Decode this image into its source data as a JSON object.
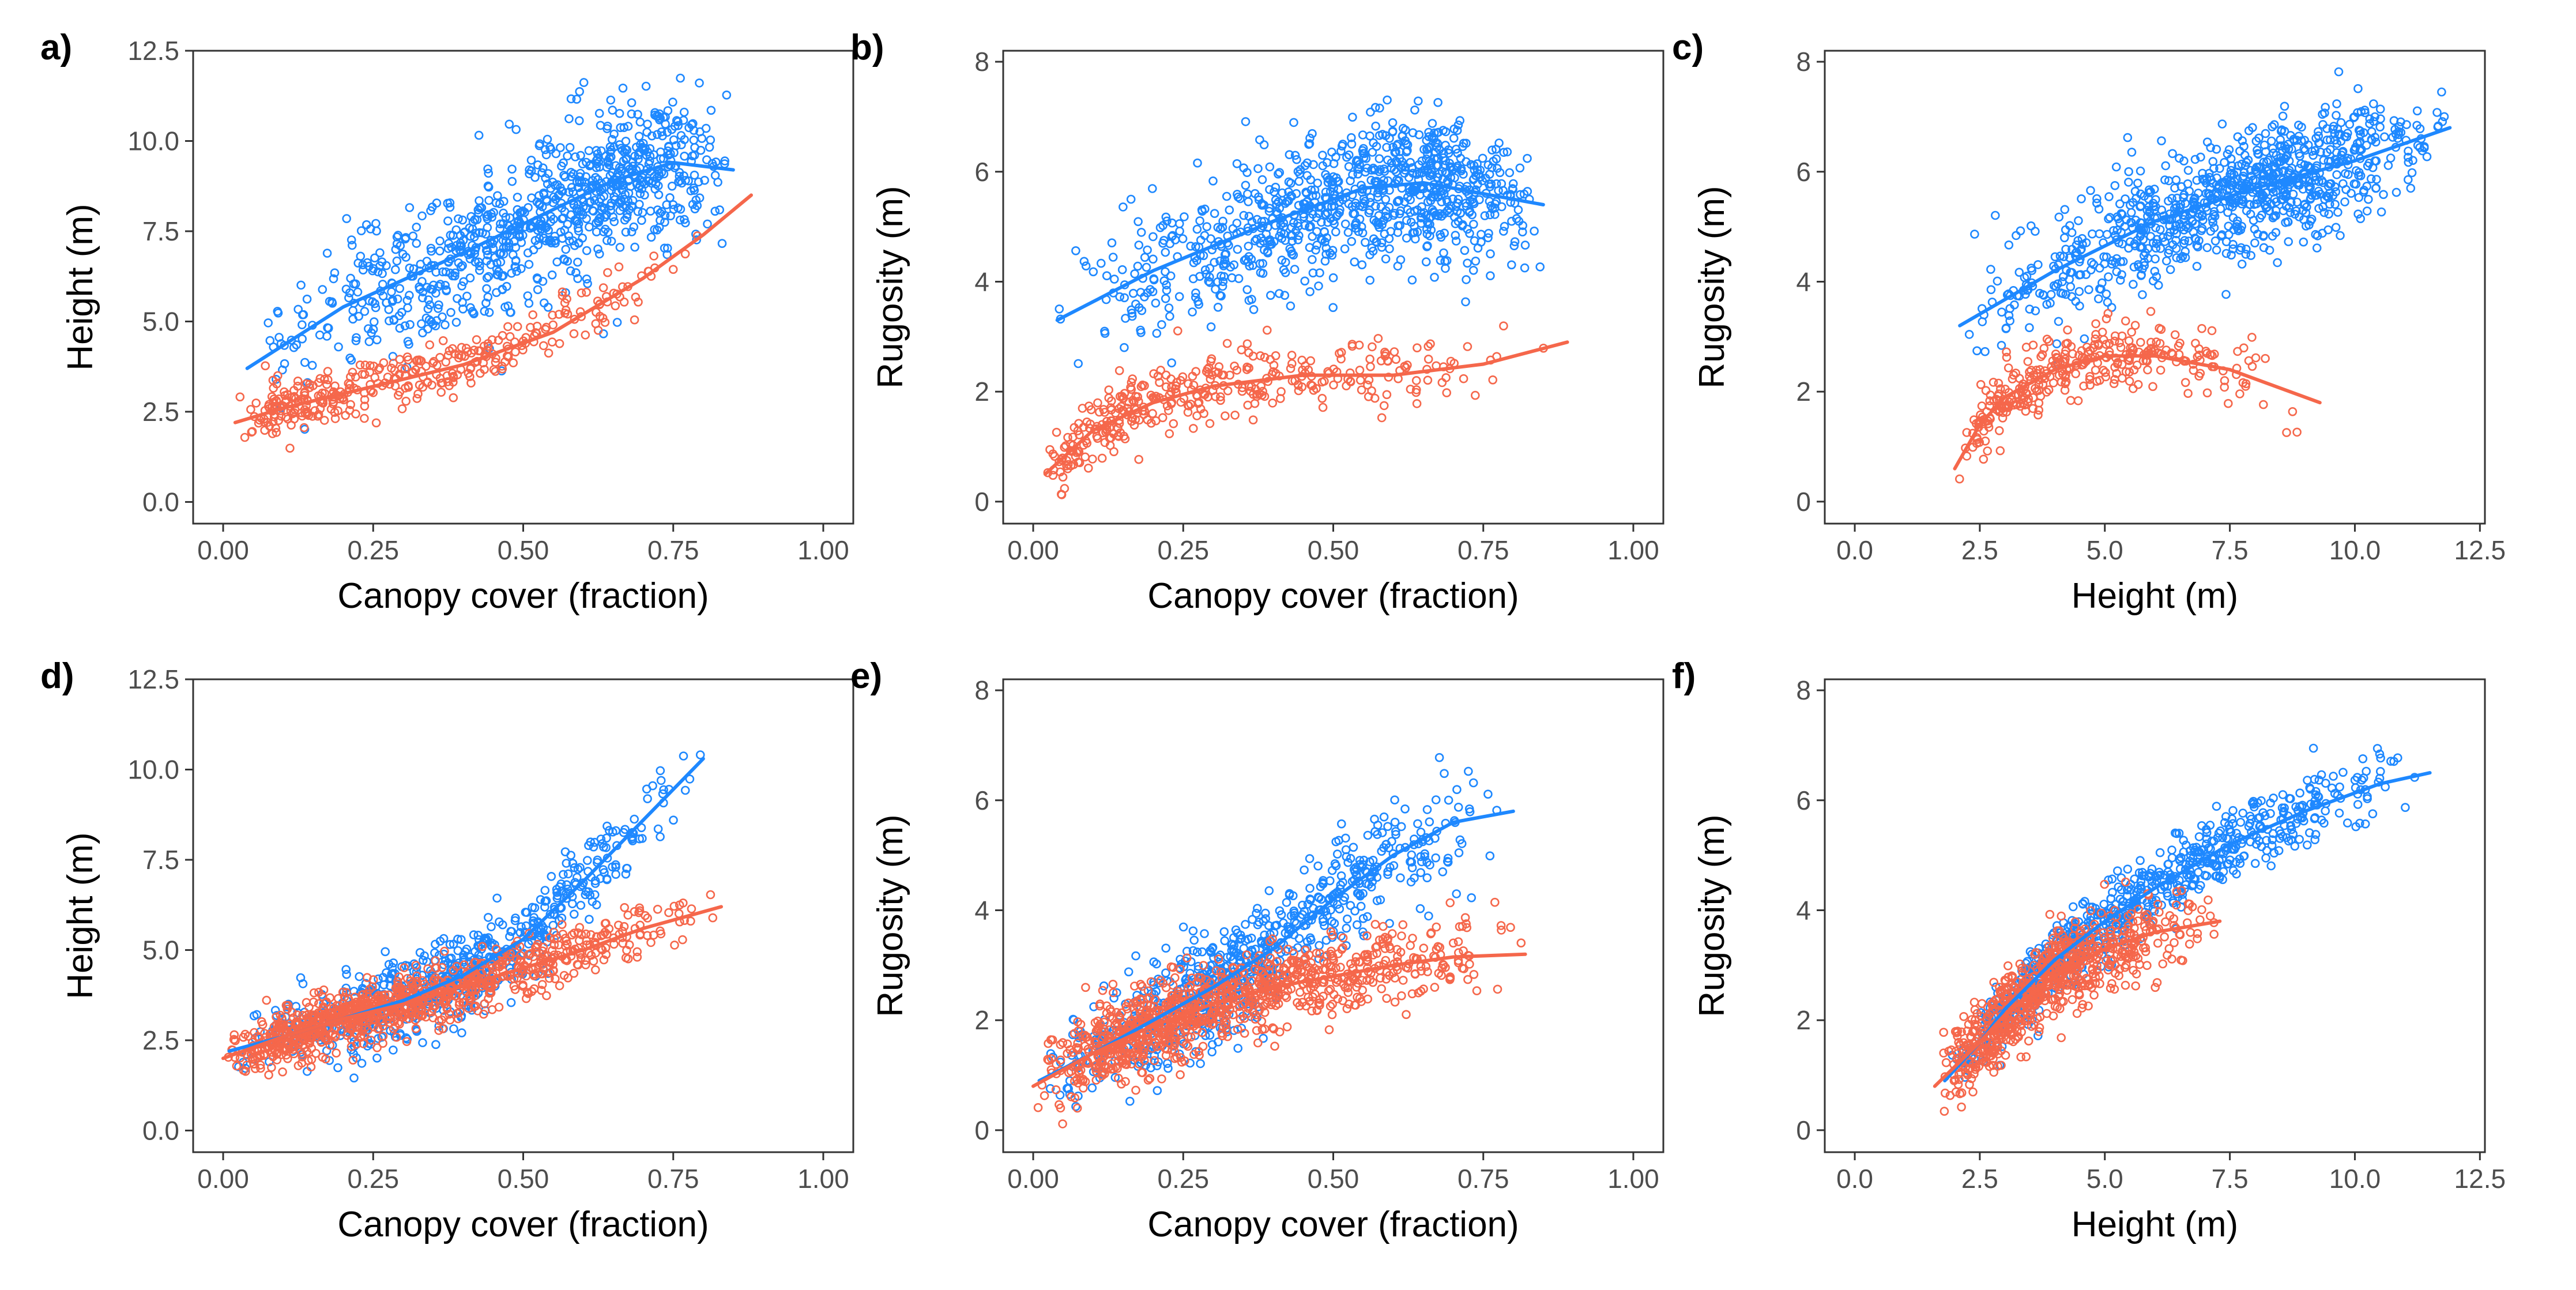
{
  "colors": {
    "series_a": "#1E88FF",
    "series_b": "#F5674B",
    "frame": "#333333",
    "tick_text": "#4d4d4d"
  },
  "chart_data": [
    {
      "type": "scatter",
      "panel_label": "a)",
      "xlabel": "Canopy cover (fraction)",
      "ylabel": "Height (m)",
      "xlim": [
        -0.05,
        1.05
      ],
      "ylim": [
        -0.6,
        12.5
      ],
      "xticks": [
        0,
        0.25,
        0.5,
        0.75,
        1
      ],
      "xtick_labels": [
        "0.00",
        "0.25",
        "0.50",
        "0.75",
        "1.00"
      ],
      "yticks": [
        0,
        2.5,
        5,
        7.5,
        10,
        12.5
      ],
      "ytick_labels": [
        "0.0",
        "2.5",
        "5.0",
        "7.5",
        "10.0",
        "12.5"
      ],
      "series": [
        {
          "name": "blue",
          "color": "#1E88FF",
          "count": 900,
          "spread": 1.4,
          "x_range": [
            0.03,
            0.85
          ],
          "x_mode": 0.7,
          "trend": [
            [
              0.04,
              3.7
            ],
            [
              0.2,
              5.4
            ],
            [
              0.4,
              6.9
            ],
            [
              0.55,
              8.1
            ],
            [
              0.65,
              8.9
            ],
            [
              0.75,
              9.4
            ],
            [
              0.85,
              9.2
            ]
          ]
        },
        {
          "name": "red",
          "color": "#F5674B",
          "count": 350,
          "spread": 0.55,
          "x_range": [
            0.02,
            0.88
          ],
          "x_mode": 0.08,
          "trend": [
            [
              0.02,
              2.2
            ],
            [
              0.1,
              2.6
            ],
            [
              0.2,
              3.0
            ],
            [
              0.4,
              3.8
            ],
            [
              0.55,
              4.7
            ],
            [
              0.7,
              6.2
            ],
            [
              0.8,
              7.4
            ],
            [
              0.88,
              8.5
            ]
          ]
        }
      ]
    },
    {
      "type": "scatter",
      "panel_label": "b)",
      "xlabel": "Canopy cover (fraction)",
      "ylabel": "Rugosity (m)",
      "xlim": [
        -0.05,
        1.05
      ],
      "ylim": [
        -0.4,
        8.2
      ],
      "xticks": [
        0,
        0.25,
        0.5,
        0.75,
        1
      ],
      "xtick_labels": [
        "0.00",
        "0.25",
        "0.50",
        "0.75",
        "1.00"
      ],
      "yticks": [
        0,
        2,
        4,
        6,
        8
      ],
      "ytick_labels": [
        "0",
        "2",
        "4",
        "6",
        "8"
      ],
      "series": [
        {
          "name": "blue",
          "color": "#1E88FF",
          "count": 900,
          "spread": 0.9,
          "x_range": [
            0.03,
            0.85
          ],
          "x_mode": 0.68,
          "trend": [
            [
              0.04,
              3.3
            ],
            [
              0.2,
              4.2
            ],
            [
              0.4,
              5.1
            ],
            [
              0.55,
              5.7
            ],
            [
              0.65,
              5.8
            ],
            [
              0.75,
              5.6
            ],
            [
              0.85,
              5.4
            ]
          ]
        },
        {
          "name": "red",
          "color": "#F5674B",
          "count": 360,
          "spread": 0.45,
          "x_range": [
            0.01,
            0.89
          ],
          "x_mode": 0.05,
          "trend": [
            [
              0.02,
              0.5
            ],
            [
              0.1,
              1.3
            ],
            [
              0.2,
              1.8
            ],
            [
              0.3,
              2.1
            ],
            [
              0.45,
              2.3
            ],
            [
              0.6,
              2.3
            ],
            [
              0.75,
              2.5
            ],
            [
              0.89,
              2.9
            ]
          ]
        }
      ]
    },
    {
      "type": "scatter",
      "panel_label": "c)",
      "xlabel": "Height (m)",
      "ylabel": "Rugosity (m)",
      "xlim": [
        -0.6,
        12.6
      ],
      "ylim": [
        -0.4,
        8.2
      ],
      "xticks": [
        0,
        2.5,
        5,
        7.5,
        10,
        12.5
      ],
      "xtick_labels": [
        "0.0",
        "2.5",
        "5.0",
        "7.5",
        "10.0",
        "12.5"
      ],
      "yticks": [
        0,
        2,
        4,
        6,
        8
      ],
      "ytick_labels": [
        "0",
        "2",
        "4",
        "6",
        "8"
      ],
      "series": [
        {
          "name": "blue",
          "color": "#1E88FF",
          "count": 900,
          "spread": 0.8,
          "x_range": [
            2.1,
            11.9
          ],
          "x_mode": 8.5,
          "trend": [
            [
              2.1,
              3.2
            ],
            [
              4,
              4.2
            ],
            [
              6,
              5.1
            ],
            [
              8,
              5.7
            ],
            [
              10,
              6.2
            ],
            [
              11.9,
              6.8
            ]
          ]
        },
        {
          "name": "red",
          "color": "#F5674B",
          "count": 330,
          "spread": 0.45,
          "x_range": [
            1.9,
            9.3
          ],
          "x_mode": 2.6,
          "trend": [
            [
              2.0,
              0.6
            ],
            [
              2.5,
              1.4
            ],
            [
              3.0,
              1.9
            ],
            [
              4.0,
              2.4
            ],
            [
              5.0,
              2.65
            ],
            [
              6.0,
              2.65
            ],
            [
              7.5,
              2.4
            ],
            [
              9.3,
              1.8
            ]
          ]
        }
      ]
    },
    {
      "type": "scatter",
      "panel_label": "d)",
      "xlabel": "Canopy cover (fraction)",
      "ylabel": "Height (m)",
      "xlim": [
        -0.05,
        1.05
      ],
      "ylim": [
        -0.6,
        12.5
      ],
      "xticks": [
        0,
        0.25,
        0.5,
        0.75,
        1
      ],
      "xtick_labels": [
        "0.00",
        "0.25",
        "0.50",
        "0.75",
        "1.00"
      ],
      "yticks": [
        0,
        2.5,
        5,
        7.5,
        10,
        12.5
      ],
      "ytick_labels": [
        "0.0",
        "2.5",
        "5.0",
        "7.5",
        "10.0",
        "12.5"
      ],
      "series": [
        {
          "name": "blue",
          "color": "#1E88FF",
          "count": 650,
          "spread": 0.75,
          "x_range": [
            0.01,
            0.8
          ],
          "x_mode": 0.35,
          "trend": [
            [
              0.01,
              2.2
            ],
            [
              0.1,
              2.6
            ],
            [
              0.2,
              3.1
            ],
            [
              0.3,
              3.6
            ],
            [
              0.4,
              4.3
            ],
            [
              0.5,
              5.3
            ],
            [
              0.6,
              6.9
            ],
            [
              0.7,
              8.6
            ],
            [
              0.8,
              10.3
            ]
          ]
        },
        {
          "name": "red",
          "color": "#F5674B",
          "count": 900,
          "spread": 0.55,
          "x_range": [
            0.0,
            0.83
          ],
          "x_mode": 0.1,
          "trend": [
            [
              0.0,
              2.0
            ],
            [
              0.1,
              2.6
            ],
            [
              0.2,
              3.1
            ],
            [
              0.3,
              3.5
            ],
            [
              0.4,
              4.0
            ],
            [
              0.5,
              4.5
            ],
            [
              0.6,
              5.0
            ],
            [
              0.7,
              5.6
            ],
            [
              0.83,
              6.2
            ]
          ]
        }
      ]
    },
    {
      "type": "scatter",
      "panel_label": "e)",
      "xlabel": "Canopy cover (fraction)",
      "ylabel": "Rugosity (m)",
      "xlim": [
        -0.05,
        1.05
      ],
      "ylim": [
        -0.4,
        8.2
      ],
      "xticks": [
        0,
        0.25,
        0.5,
        0.75,
        1
      ],
      "xtick_labels": [
        "0.00",
        "0.25",
        "0.50",
        "0.75",
        "1.00"
      ],
      "yticks": [
        0,
        2,
        4,
        6,
        8
      ],
      "ytick_labels": [
        "0",
        "2",
        "4",
        "6",
        "8"
      ],
      "series": [
        {
          "name": "blue",
          "color": "#1E88FF",
          "count": 700,
          "spread": 0.75,
          "x_range": [
            0.01,
            0.8
          ],
          "x_mode": 0.3,
          "trend": [
            [
              0.01,
              0.9
            ],
            [
              0.1,
              1.4
            ],
            [
              0.2,
              2.0
            ],
            [
              0.3,
              2.6
            ],
            [
              0.4,
              3.3
            ],
            [
              0.5,
              4.2
            ],
            [
              0.6,
              5.0
            ],
            [
              0.7,
              5.6
            ],
            [
              0.8,
              5.8
            ]
          ]
        },
        {
          "name": "red",
          "color": "#F5674B",
          "count": 950,
          "spread": 0.55,
          "x_range": [
            0.0,
            0.82
          ],
          "x_mode": 0.15,
          "trend": [
            [
              0.0,
              0.8
            ],
            [
              0.1,
              1.4
            ],
            [
              0.2,
              1.9
            ],
            [
              0.3,
              2.3
            ],
            [
              0.4,
              2.6
            ],
            [
              0.5,
              2.8
            ],
            [
              0.6,
              3.0
            ],
            [
              0.7,
              3.15
            ],
            [
              0.82,
              3.2
            ]
          ]
        }
      ]
    },
    {
      "type": "scatter",
      "panel_label": "f)",
      "xlabel": "Height (m)",
      "ylabel": "Rugosity (m)",
      "xlim": [
        -0.6,
        12.6
      ],
      "ylim": [
        -0.4,
        8.2
      ],
      "xticks": [
        0,
        2.5,
        5,
        7.5,
        10,
        12.5
      ],
      "xtick_labels": [
        "0.0",
        "2.5",
        "5.0",
        "7.5",
        "10.0",
        "12.5"
      ],
      "yticks": [
        0,
        2,
        4,
        6,
        8
      ],
      "ytick_labels": [
        "0",
        "2",
        "4",
        "6",
        "8"
      ],
      "series": [
        {
          "name": "blue",
          "color": "#1E88FF",
          "count": 750,
          "spread": 0.45,
          "x_range": [
            1.8,
            11.5
          ],
          "x_mode": 3.6,
          "trend": [
            [
              1.8,
              0.9
            ],
            [
              2.5,
              1.6
            ],
            [
              3.0,
              2.2
            ],
            [
              4.0,
              3.1
            ],
            [
              5.0,
              3.8
            ],
            [
              6.0,
              4.4
            ],
            [
              7.5,
              5.2
            ],
            [
              9.0,
              5.8
            ],
            [
              10.5,
              6.3
            ],
            [
              11.5,
              6.5
            ]
          ]
        },
        {
          "name": "red",
          "color": "#F5674B",
          "count": 700,
          "spread": 0.55,
          "x_range": [
            1.6,
            7.3
          ],
          "x_mode": 2.8,
          "trend": [
            [
              1.6,
              0.8
            ],
            [
              2.5,
              1.6
            ],
            [
              3.0,
              2.1
            ],
            [
              4.0,
              2.8
            ],
            [
              5.0,
              3.3
            ],
            [
              6.0,
              3.6
            ],
            [
              7.3,
              3.8
            ]
          ]
        }
      ]
    }
  ]
}
